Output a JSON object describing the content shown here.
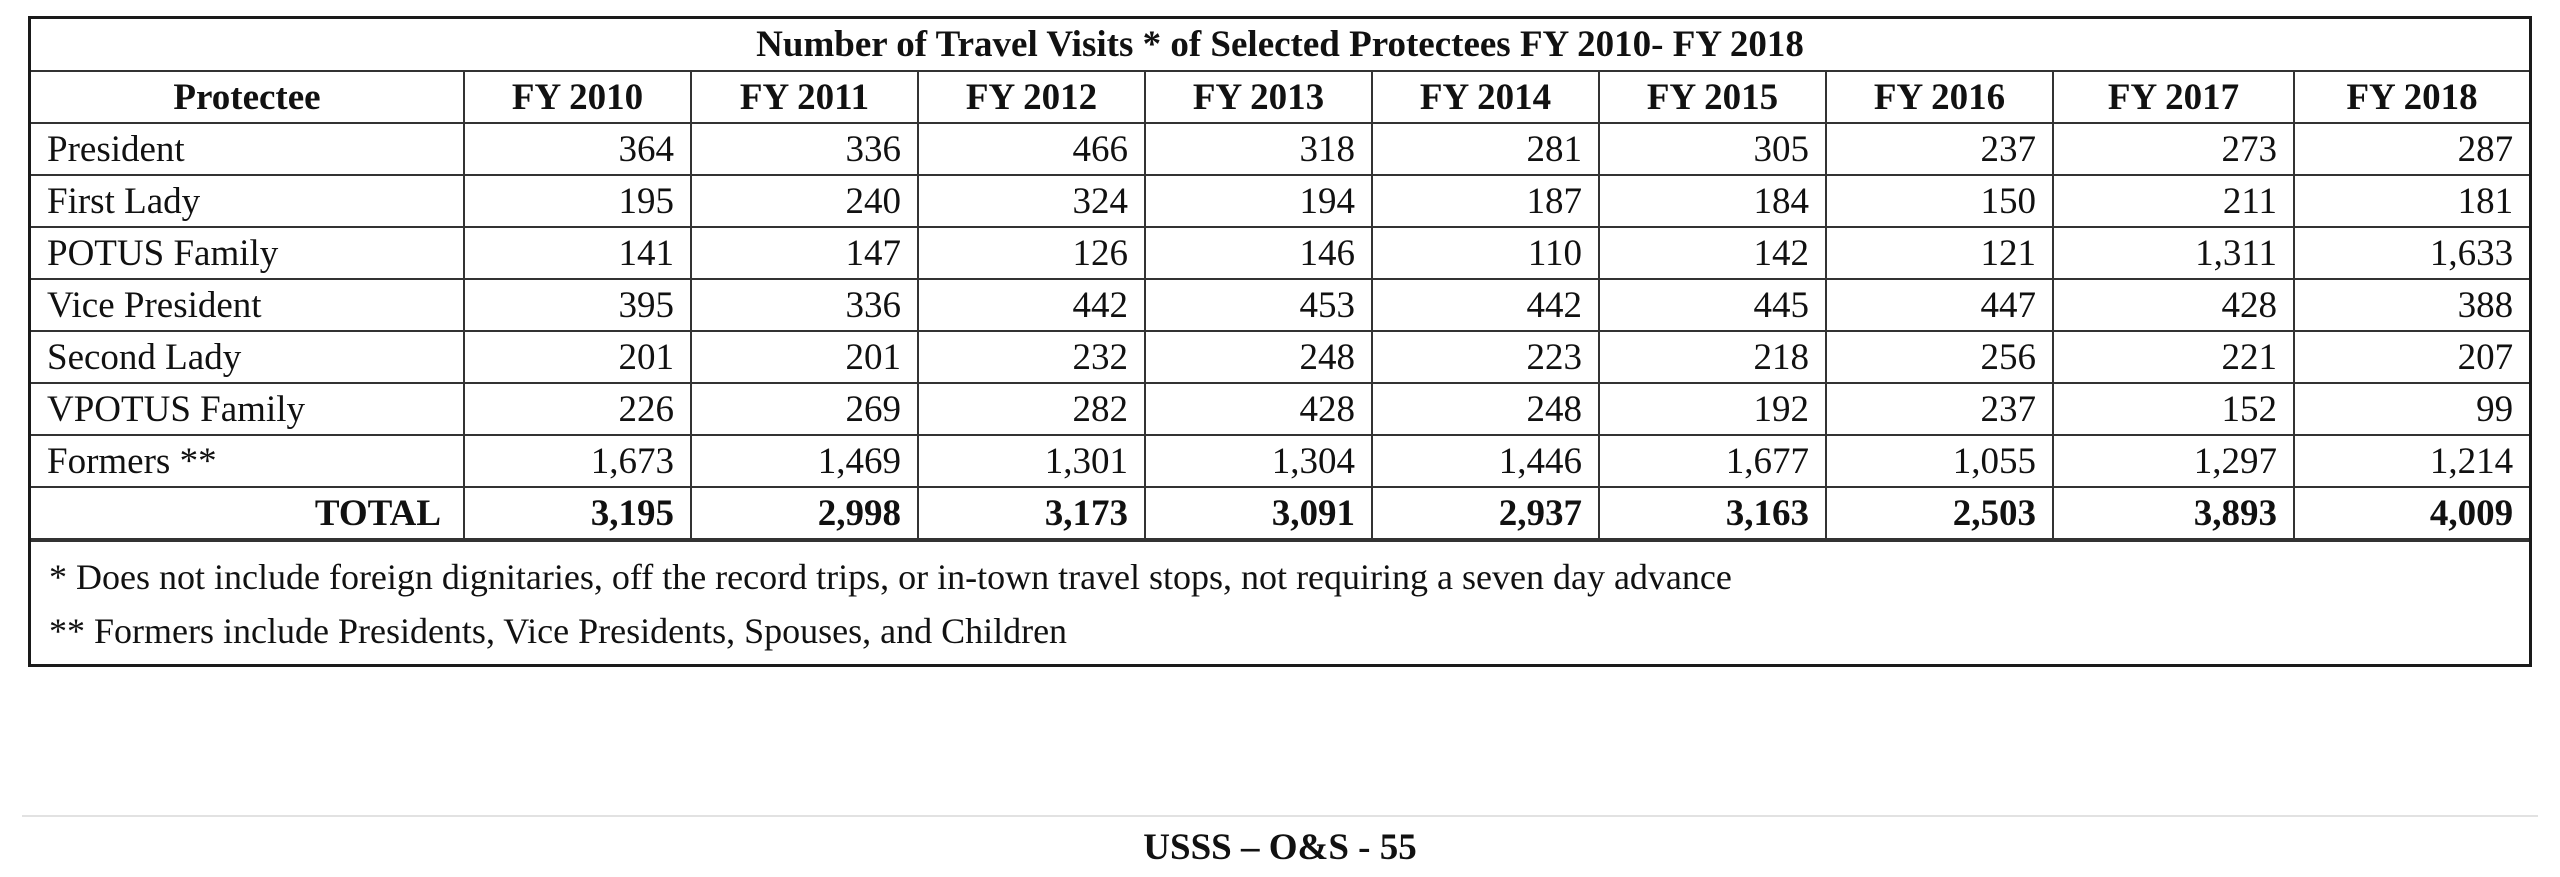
{
  "table": {
    "title": "Number of Travel Visits * of Selected Protectees FY 2010- FY 2018",
    "header": [
      "Protectee",
      "FY 2010",
      "FY 2011",
      "FY 2012",
      "FY 2013",
      "FY 2014",
      "FY 2015",
      "FY 2016",
      "FY 2017",
      "FY 2018"
    ],
    "rows": [
      {
        "name": "President",
        "values": [
          "364",
          "336",
          "466",
          "318",
          "281",
          "305",
          "237",
          "273",
          "287"
        ]
      },
      {
        "name": "First Lady",
        "values": [
          "195",
          "240",
          "324",
          "194",
          "187",
          "184",
          "150",
          "211",
          "181"
        ]
      },
      {
        "name": "POTUS Family",
        "values": [
          "141",
          "147",
          "126",
          "146",
          "110",
          "142",
          "121",
          "1,311",
          "1,633"
        ]
      },
      {
        "name": "Vice President",
        "values": [
          "395",
          "336",
          "442",
          "453",
          "442",
          "445",
          "447",
          "428",
          "388"
        ]
      },
      {
        "name": "Second Lady",
        "values": [
          "201",
          "201",
          "232",
          "248",
          "223",
          "218",
          "256",
          "221",
          "207"
        ]
      },
      {
        "name": "VPOTUS Family",
        "values": [
          "226",
          "269",
          "282",
          "428",
          "248",
          "192",
          "237",
          "152",
          "99"
        ]
      },
      {
        "name": "Formers **",
        "values": [
          "1,673",
          "1,469",
          "1,301",
          "1,304",
          "1,446",
          "1,677",
          "1,055",
          "1,297",
          "1,214"
        ]
      }
    ],
    "total": {
      "name": "TOTAL",
      "values": [
        "3,195",
        "2,998",
        "3,173",
        "3,091",
        "2,937",
        "3,163",
        "2,503",
        "3,893",
        "4,009"
      ]
    },
    "notes": [
      "* Does not include foreign dignitaries, off the record trips, or in-town travel stops, not requiring a seven day advance",
      "** Formers include Presidents, Vice Presidents, Spouses, and Children"
    ]
  },
  "footer": "USSS – O&S - 55"
}
